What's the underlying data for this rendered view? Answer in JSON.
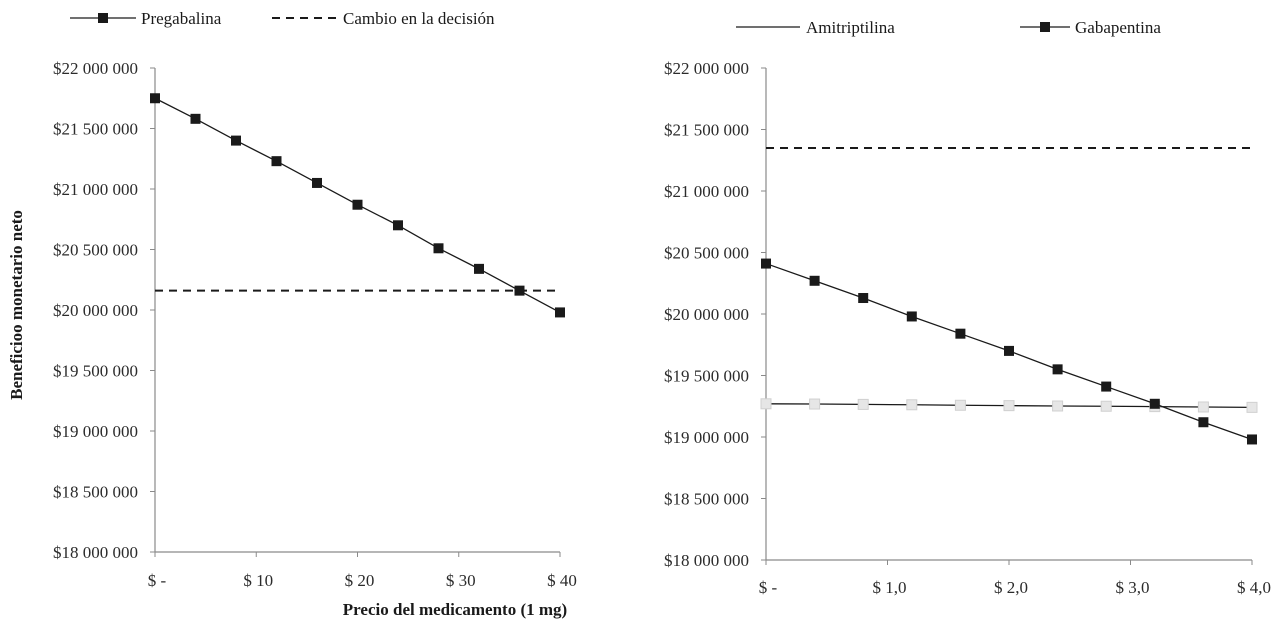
{
  "chart_data": [
    {
      "type": "line",
      "title": "",
      "xlabel": "Precio del medicamento (1 mg)",
      "ylabel": "Beneficioo monetario neto",
      "x_ticks": [
        "$ -",
        "$ 10",
        "$ 20",
        "$ 30",
        "$ 40"
      ],
      "y_ticks": [
        "$18 000 000",
        "$18 500 000",
        "$19 000 000",
        "$19 500 000",
        "$20 000 000",
        "$20 500 000",
        "$21 000 000",
        "$21 500 000",
        "$22 000 000"
      ],
      "xlim": [
        0,
        40
      ],
      "ylim": [
        18000000,
        22000000
      ],
      "legend_position": "top",
      "series": [
        {
          "name": "Pregabalina",
          "style": "solid-square-markers",
          "color": "#1a1a1a",
          "x": [
            0,
            4,
            8,
            12,
            16,
            20,
            24,
            28,
            32,
            36,
            40
          ],
          "values": [
            21750000,
            21580000,
            21400000,
            21230000,
            21050000,
            20870000,
            20700000,
            20510000,
            20340000,
            20160000,
            19980000
          ]
        },
        {
          "name": "Cambio en la decisión",
          "style": "dashed",
          "color": "#1a1a1a",
          "x": [
            0,
            40
          ],
          "values": [
            20160000,
            20160000
          ]
        }
      ]
    },
    {
      "type": "line",
      "title": "",
      "xlabel": "",
      "ylabel": "",
      "x_ticks": [
        "$ -",
        "$ 1,0",
        "$ 2,0",
        "$ 3,0",
        "$ 4,0"
      ],
      "y_ticks": [
        "$18 000 000",
        "$18 500 000",
        "$19 000 000",
        "$19 500 000",
        "$20 000 000",
        "$20 500 000",
        "$21 000 000",
        "$21 500 000",
        "$22 000 000"
      ],
      "xlim": [
        0,
        4
      ],
      "ylim": [
        18000000,
        22000000
      ],
      "legend_position": "top",
      "series": [
        {
          "name": "Amitriptilina",
          "style": "solid-hollow-markers",
          "color": "#1a1a1a",
          "x": [
            0,
            0.4,
            0.8,
            1.2,
            1.6,
            2.0,
            2.4,
            2.8,
            3.2,
            3.6,
            4.0
          ],
          "values": [
            19270000,
            19268000,
            19265000,
            19262000,
            19258000,
            19255000,
            19252000,
            19250000,
            19247000,
            19244000,
            19241000
          ]
        },
        {
          "name": "Gabapentina",
          "style": "solid-square-markers",
          "color": "#1a1a1a",
          "x": [
            0,
            0.4,
            0.8,
            1.2,
            1.6,
            2.0,
            2.4,
            2.8,
            3.2,
            3.6,
            4.0
          ],
          "values": [
            20410000,
            20270000,
            20130000,
            19980000,
            19840000,
            19700000,
            19550000,
            19410000,
            19270000,
            19120000,
            18980000
          ]
        },
        {
          "name": "",
          "style": "dashed",
          "color": "#1a1a1a",
          "x": [
            0,
            4
          ],
          "values": [
            21350000,
            21350000
          ]
        }
      ]
    }
  ]
}
